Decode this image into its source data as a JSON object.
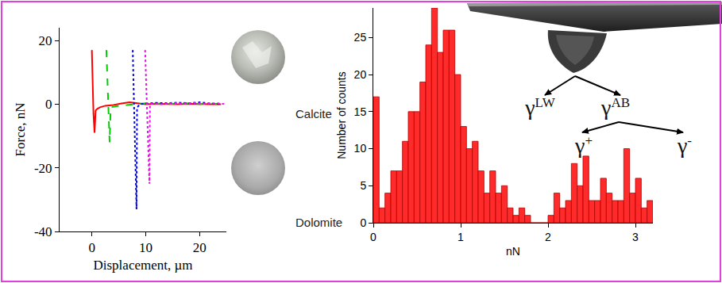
{
  "chart_data": [
    {
      "type": "line",
      "x_label": "Displacement, µm",
      "y_label": "Force, nN",
      "xlim": [
        -6,
        25
      ],
      "ylim": [
        -40,
        24
      ],
      "xticks": [
        0,
        10,
        20
      ],
      "yticks": [
        -40,
        -20,
        0,
        20
      ],
      "grid": false,
      "series": [
        {
          "color": "#ff0000",
          "line_style": "solid",
          "x": [
            0,
            0.1,
            0.3,
            0.5,
            0.7,
            1,
            1.5,
            2.5,
            4,
            5.5,
            7,
            8.5,
            10,
            12,
            14,
            16,
            18,
            20,
            22,
            24
          ],
          "values": [
            17,
            8,
            -3,
            -9,
            -2,
            -1.5,
            -1,
            -0.5,
            -0.3,
            0.2,
            0.6,
            0.3,
            0,
            0.1,
            0,
            0,
            0.1,
            0,
            0,
            0
          ]
        },
        {
          "color": "#00cc00",
          "line_style": "dash",
          "x": [
            2.7,
            3,
            3.3,
            3.5,
            4,
            5,
            6.5,
            8,
            10,
            12,
            14,
            16,
            18,
            20,
            22,
            24
          ],
          "values": [
            17,
            2,
            -12,
            -1,
            -0.8,
            -0.5,
            -0.3,
            0,
            0.3,
            0.2,
            0,
            0.2,
            0.3,
            0,
            0.2,
            0
          ]
        },
        {
          "color": "#0000ff",
          "line_style": "dot",
          "x": [
            7.6,
            8,
            8.3,
            8.4,
            9,
            10,
            12,
            14,
            16,
            18,
            20,
            22,
            24
          ],
          "values": [
            17,
            -10,
            -33,
            -1,
            0,
            0.2,
            0.4,
            0.3,
            0.5,
            0.3,
            0.6,
            0.2,
            0
          ]
        },
        {
          "color": "#ff00ff",
          "line_style": "dot",
          "x": [
            9.9,
            10.3,
            10.7,
            10.8,
            11.5,
            13,
            15,
            17,
            19,
            21,
            23,
            25
          ],
          "values": [
            17,
            -5,
            -25,
            0,
            0.2,
            0,
            0.3,
            0.2,
            0.4,
            0.1,
            0.3,
            0
          ]
        }
      ]
    },
    {
      "type": "histogram",
      "x_label": "nN",
      "y_label": "Number of counts",
      "xlim": [
        0,
        3.2
      ],
      "ylim": [
        0,
        29
      ],
      "xticks": [
        0,
        1,
        2,
        3
      ],
      "yticks": [
        0,
        5,
        10,
        15,
        20,
        25
      ],
      "grid": false,
      "color": "#ff2a2a",
      "bins": [
        0,
        0.0667,
        0.1333,
        0.2,
        0.2667,
        0.3333,
        0.4,
        0.4667,
        0.5333,
        0.6,
        0.6667,
        0.7333,
        0.8,
        0.8667,
        0.9333,
        1,
        1.0667,
        1.1333,
        1.2,
        1.2667,
        1.3333,
        1.4,
        1.4667,
        1.5333,
        1.6,
        1.6667,
        1.7333,
        1.8,
        1.8667,
        1.9333,
        2,
        2.0667,
        2.1333,
        2.2,
        2.2667,
        2.3333,
        2.4,
        2.4667,
        2.5333,
        2.6,
        2.6667,
        2.7333,
        2.8,
        2.8667,
        2.9333,
        3,
        3.0667,
        3.1333,
        3.2
      ],
      "values": [
        17,
        2,
        4,
        7,
        7,
        11,
        15,
        15,
        19,
        24,
        29,
        23,
        26,
        26,
        20,
        13,
        10,
        11,
        7,
        4,
        7,
        4,
        5,
        2,
        1,
        2,
        1,
        0,
        0,
        0,
        1,
        4,
        2,
        3,
        8,
        5,
        9,
        3,
        3,
        6,
        4,
        3,
        3,
        10,
        4,
        6,
        2,
        3
      ]
    }
  ],
  "images": {
    "labels": [
      "Calcite",
      "Dolomite"
    ]
  },
  "diagram": {
    "nodes": [
      {
        "text": "γ",
        "sup": "LW",
        "children": []
      },
      {
        "text": "γ",
        "sup": "AB",
        "children": [
          {
            "text": "γ",
            "sup": "+"
          },
          {
            "text": "γ",
            "sup": "-"
          }
        ]
      }
    ]
  }
}
